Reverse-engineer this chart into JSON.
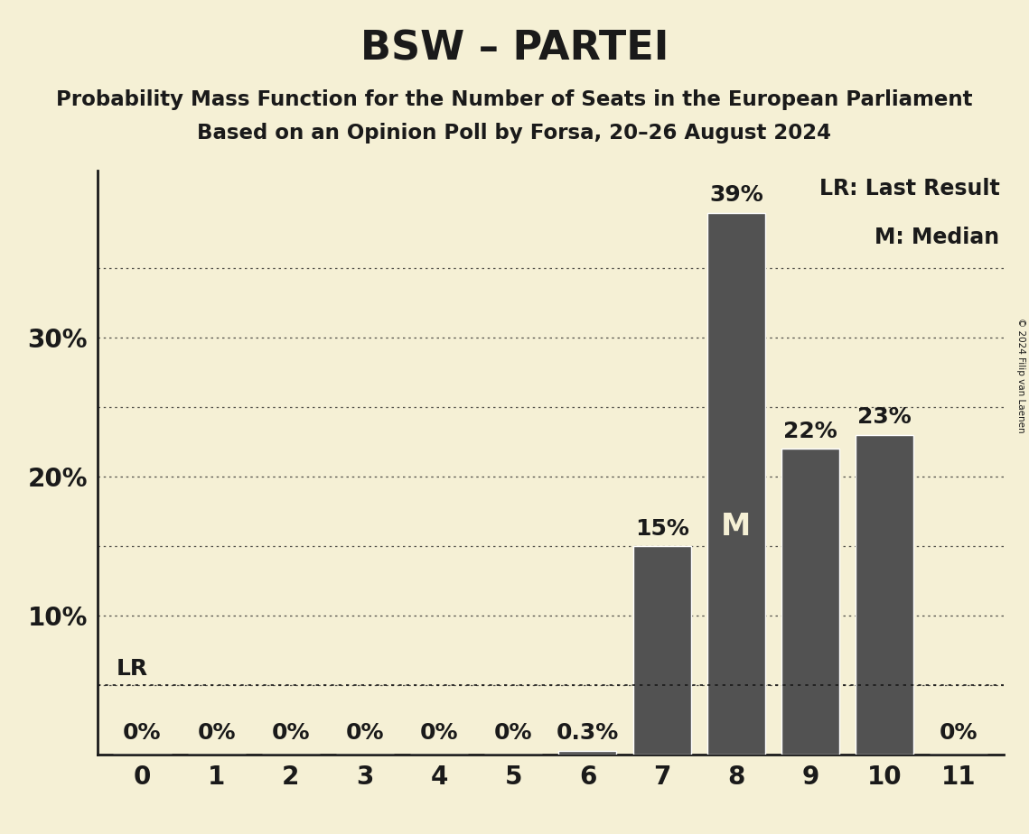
{
  "title": "BSW – PARTEI",
  "subtitle1": "Probability Mass Function for the Number of Seats in the European Parliament",
  "subtitle2": "Based on an Opinion Poll by Forsa, 20–26 August 2024",
  "copyright": "© 2024 Filip van Laenen",
  "categories": [
    0,
    1,
    2,
    3,
    4,
    5,
    6,
    7,
    8,
    9,
    10,
    11
  ],
  "values": [
    0.0,
    0.0,
    0.0,
    0.0,
    0.0,
    0.0,
    0.3,
    15.0,
    39.0,
    22.0,
    23.0,
    0.0
  ],
  "bar_color": "#525252",
  "bar_edge_color": "#ffffff",
  "background_color": "#f5f0d5",
  "text_color": "#1a1a1a",
  "median_bar": 8,
  "median_label": "M",
  "lr_value": 5.0,
  "lr_label": "LR",
  "grid_lines": [
    5,
    10,
    15,
    20,
    25,
    30,
    35
  ],
  "ylim": [
    0,
    42
  ],
  "legend_text1": "LR: Last Result",
  "legend_text2": "M: Median",
  "title_fontsize": 32,
  "subtitle_fontsize": 16.5,
  "axis_tick_fontsize": 20,
  "bar_label_fontsize": 18,
  "legend_fontsize": 17,
  "median_fontsize": 24,
  "lr_fontsize": 18
}
